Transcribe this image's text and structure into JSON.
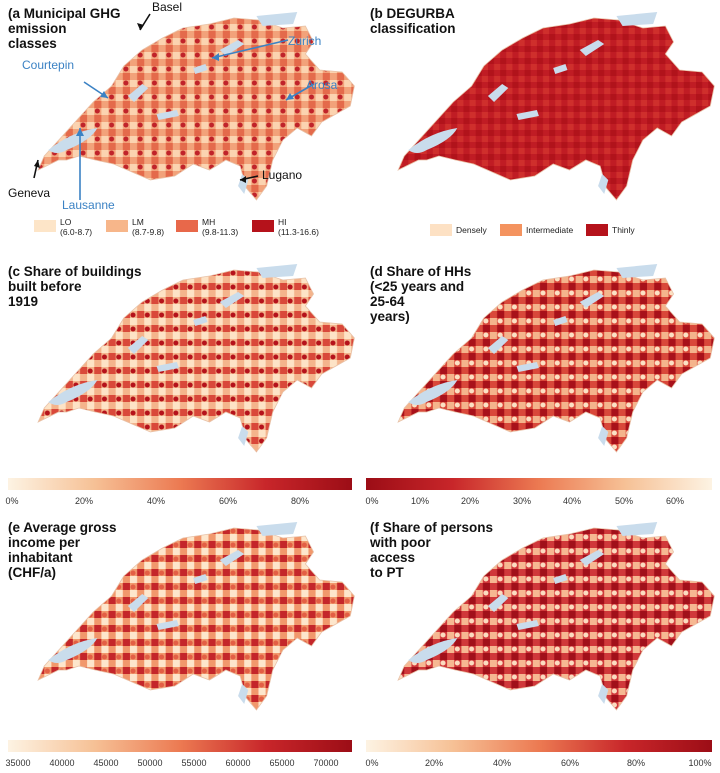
{
  "panels": {
    "a": {
      "title": "(a Municipal GHG\nemission\nclasses"
    },
    "b": {
      "title": "(b DEGURBA\nclassification"
    },
    "c": {
      "title": "(c Share of buildings\nbuilt before\n1919"
    },
    "d": {
      "title": "(d Share of HHs\n(<25 years and\n25-64\nyears)"
    },
    "e": {
      "title": "(e Average gross\nincome per\ninhabitant\n(CHF/a)"
    },
    "f": {
      "title": "(f Share of persons\nwith poor\naccess\nto PT"
    }
  },
  "cities": [
    {
      "name": "Basel",
      "color": "black"
    },
    {
      "name": "Zurich",
      "color": "blue"
    },
    {
      "name": "Courtepin",
      "color": "blue"
    },
    {
      "name": "Arosa",
      "color": "blue"
    },
    {
      "name": "Geneva",
      "color": "black"
    },
    {
      "name": "Lausanne",
      "color": "blue"
    },
    {
      "name": "Lugano",
      "color": "black"
    }
  ],
  "legend_a": [
    {
      "label": "LO",
      "range": "(6.0-8.7)",
      "color": "#fde5c8"
    },
    {
      "label": "LM",
      "range": "(8.7-9.8)",
      "color": "#f7b68a"
    },
    {
      "label": "MH",
      "range": "(9.8-11.3)",
      "color": "#e8684a"
    },
    {
      "label": "HI",
      "range": "(11.3-16.6)",
      "color": "#b5121b"
    }
  ],
  "legend_b": [
    {
      "label": "Densely",
      "color": "#fde1c4"
    },
    {
      "label": "Intermediate",
      "color": "#f4935f"
    },
    {
      "label": "Thinly",
      "color": "#b5121b"
    }
  ],
  "colorbar_c": {
    "ticks": [
      "0%",
      "20%",
      "40%",
      "60%",
      "80%"
    ],
    "direction": "light-to-dark"
  },
  "colorbar_d": {
    "ticks": [
      "0%",
      "10%",
      "20%",
      "30%",
      "40%",
      "50%",
      "60%"
    ],
    "direction": "dark-to-light"
  },
  "colorbar_e": {
    "ticks": [
      "35000",
      "40000",
      "45000",
      "50000",
      "55000",
      "60000",
      "65000",
      "70000"
    ],
    "direction": "light-to-dark"
  },
  "colorbar_f": {
    "ticks": [
      "0%",
      "20%",
      "40%",
      "60%",
      "80%",
      "100%"
    ],
    "direction": "light-to-dark"
  },
  "colors": {
    "light": "#fdf0dc",
    "mid": "#ec7a52",
    "dark": "#b5121b",
    "lake": "#c9dcec"
  }
}
